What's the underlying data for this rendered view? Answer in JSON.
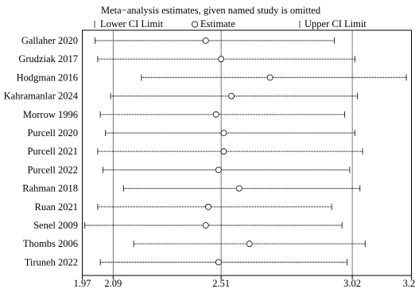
{
  "chart_data": {
    "type": "scatter",
    "title": "Meta−analysis estimates, given named study is omitted",
    "legend": {
      "placement": "top",
      "entries": [
        {
          "label": "Lower CI Limit",
          "marker": "bar"
        },
        {
          "label": "Estimate",
          "marker": "circle"
        },
        {
          "label": "Upper CI Limit",
          "marker": "bar"
        }
      ]
    },
    "x_axis": {
      "range": [
        1.97,
        3.25
      ],
      "ticks": [
        1.97,
        2.09,
        2.51,
        3.02,
        3.25
      ],
      "tick_labels": [
        "1.97",
        "2.09",
        "2.51",
        "3.02",
        "3.25"
      ],
      "reference_lines": [
        2.09,
        2.51,
        3.02
      ]
    },
    "grid": false,
    "series": [
      {
        "study": "Gallaher 2020",
        "lower": 2.02,
        "estimate": 2.45,
        "upper": 2.95
      },
      {
        "study": "Grudziak 2017",
        "lower": 2.03,
        "estimate": 2.51,
        "upper": 3.03
      },
      {
        "study": "Hodgman 2016",
        "lower": 2.2,
        "estimate": 2.7,
        "upper": 3.23
      },
      {
        "study": "Kahramanlar 2024",
        "lower": 2.08,
        "estimate": 2.55,
        "upper": 3.04
      },
      {
        "study": "Morrow 1996",
        "lower": 2.04,
        "estimate": 2.49,
        "upper": 2.99
      },
      {
        "study": "Purcell 2020",
        "lower": 2.06,
        "estimate": 2.52,
        "upper": 3.03
      },
      {
        "study": "Purcell 2021",
        "lower": 2.03,
        "estimate": 2.52,
        "upper": 3.06
      },
      {
        "study": "Purcell 2022",
        "lower": 2.05,
        "estimate": 2.5,
        "upper": 3.01
      },
      {
        "study": "Rahman 2018",
        "lower": 2.13,
        "estimate": 2.58,
        "upper": 3.05
      },
      {
        "study": "Ruan 2021",
        "lower": 2.03,
        "estimate": 2.46,
        "upper": 2.94
      },
      {
        "study": "Senel 2009",
        "lower": 1.98,
        "estimate": 2.45,
        "upper": 2.98
      },
      {
        "study": "Thombs 2006",
        "lower": 2.17,
        "estimate": 2.62,
        "upper": 3.07
      },
      {
        "study": "Tiruneh 2022",
        "lower": 2.04,
        "estimate": 2.5,
        "upper": 3.0
      }
    ]
  }
}
